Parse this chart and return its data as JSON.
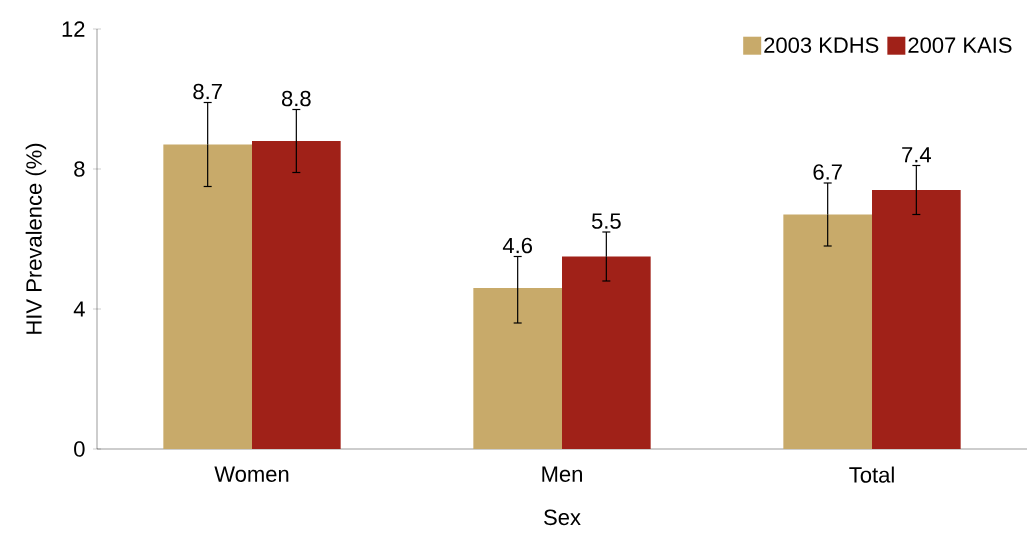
{
  "chart_data": {
    "type": "bar",
    "xlabel": "Sex",
    "ylabel": "HIV Prevalence (%)",
    "categories": [
      "Women",
      "Men",
      "Total"
    ],
    "series": [
      {
        "name": "2003 KDHS",
        "color": "#c8aa6a",
        "values": [
          8.7,
          4.6,
          6.7
        ],
        "errors": [
          [
            7.5,
            9.9
          ],
          [
            3.6,
            5.5
          ],
          [
            5.8,
            7.6
          ]
        ]
      },
      {
        "name": "2007 KAIS",
        "color": "#a02118",
        "values": [
          8.8,
          5.5,
          7.4
        ],
        "errors": [
          [
            7.9,
            9.7
          ],
          [
            4.8,
            6.2
          ],
          [
            6.7,
            8.1
          ]
        ]
      }
    ],
    "ylim": [
      0,
      12
    ],
    "yticks": [
      0,
      4,
      8,
      12
    ],
    "data_labels": true,
    "legend": "top right",
    "grid": false
  }
}
